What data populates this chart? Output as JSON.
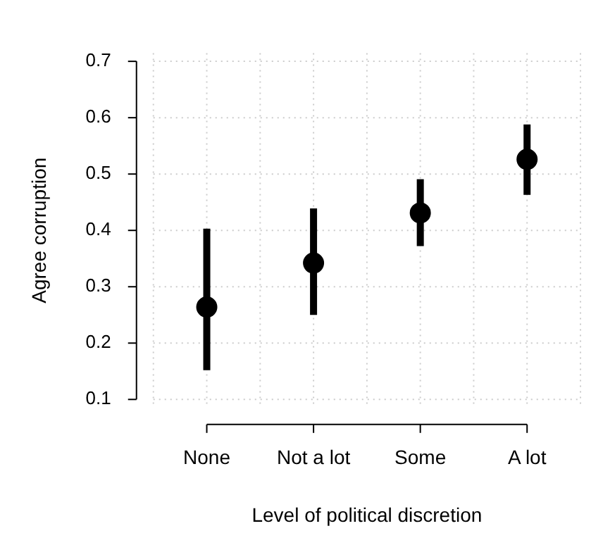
{
  "chart_data": {
    "type": "scatter",
    "xlabel": "Level of political discretion",
    "ylabel": "Agree corruption",
    "categories": [
      "None",
      "Not a lot",
      "Some",
      "A lot"
    ],
    "values": [
      0.264,
      0.342,
      0.431,
      0.526
    ],
    "errors": [
      [
        0.152,
        0.403
      ],
      [
        0.25,
        0.439
      ],
      [
        0.372,
        0.491
      ],
      [
        0.463,
        0.588
      ]
    ],
    "color": "#000000",
    "ylim": [
      0.1,
      0.7
    ],
    "yticks": [
      0.1,
      0.2,
      0.3,
      0.4,
      0.5,
      0.6,
      0.7
    ],
    "grid": true,
    "marker": "circle"
  }
}
